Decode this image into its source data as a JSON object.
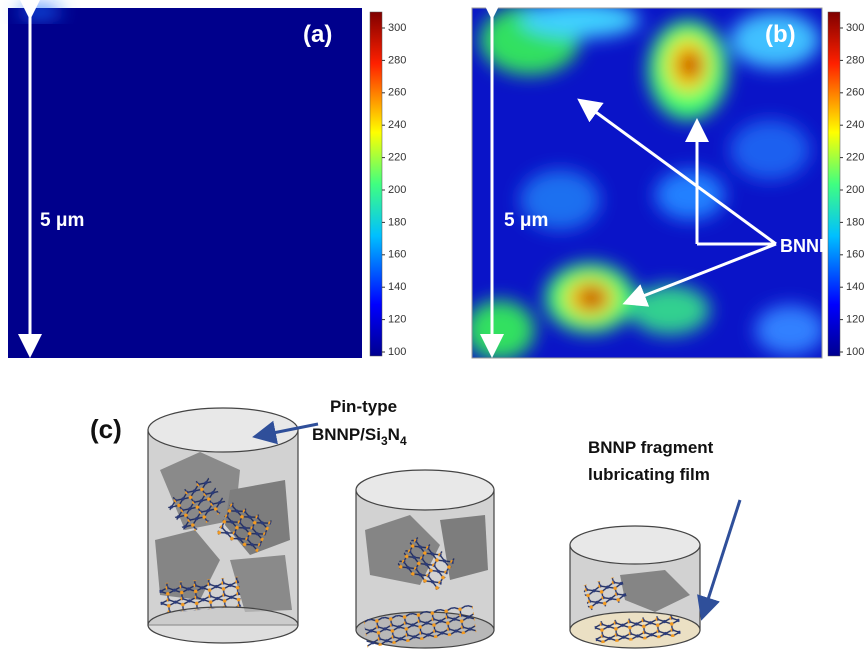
{
  "panels": [
    {
      "label": "(a)",
      "scale_bar": "5 μm",
      "colorbar_ticks": [
        300,
        280,
        260,
        240,
        220,
        200,
        180,
        160,
        140,
        120,
        100
      ]
    },
    {
      "label": "(b)",
      "scale_bar": "5 μm",
      "annotation": "BNNP",
      "colorbar_ticks": [
        300,
        280,
        260,
        240,
        220,
        200,
        180,
        160,
        140,
        120,
        100
      ]
    },
    {
      "label": "(c)",
      "pin_label": {
        "line1": "Pin-type",
        "line2": [
          "BNNP/Si",
          "3",
          "N",
          "4"
        ]
      },
      "film_label": {
        "line1": "BNNP fragment",
        "line2": "lubricating film"
      }
    }
  ]
}
